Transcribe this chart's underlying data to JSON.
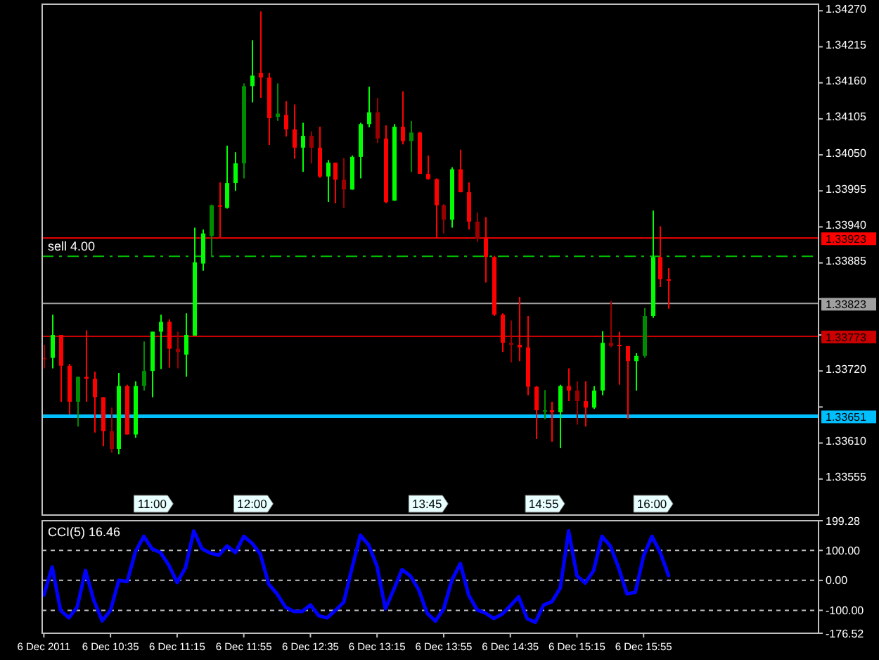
{
  "chart_data": [
    {
      "type": "candlestick",
      "x": [
        "2011-12-06T09:55",
        "2011-12-06T10:00",
        "2011-12-06T10:05",
        "2011-12-06T10:10",
        "2011-12-06T10:15",
        "2011-12-06T10:20",
        "2011-12-06T10:25",
        "2011-12-06T10:30",
        "2011-12-06T10:35",
        "2011-12-06T10:40",
        "2011-12-06T10:45",
        "2011-12-06T10:50",
        "2011-12-06T10:55",
        "2011-12-06T11:00",
        "2011-12-06T11:05",
        "2011-12-06T11:10",
        "2011-12-06T11:15",
        "2011-12-06T11:20",
        "2011-12-06T11:25",
        "2011-12-06T11:30",
        "2011-12-06T11:35",
        "2011-12-06T11:40",
        "2011-12-06T11:45",
        "2011-12-06T11:50",
        "2011-12-06T11:55",
        "2011-12-06T12:00",
        "2011-12-06T12:05",
        "2011-12-06T12:10",
        "2011-12-06T12:15",
        "2011-12-06T12:20",
        "2011-12-06T12:25",
        "2011-12-06T12:30",
        "2011-12-06T12:35",
        "2011-12-06T12:40",
        "2011-12-06T12:45",
        "2011-12-06T12:50",
        "2011-12-06T12:55",
        "2011-12-06T13:00",
        "2011-12-06T13:05",
        "2011-12-06T13:10",
        "2011-12-06T13:15",
        "2011-12-06T13:20",
        "2011-12-06T13:25",
        "2011-12-06T13:30",
        "2011-12-06T13:35",
        "2011-12-06T13:40",
        "2011-12-06T13:45",
        "2011-12-06T13:50",
        "2011-12-06T13:55",
        "2011-12-06T14:00",
        "2011-12-06T14:05",
        "2011-12-06T14:10",
        "2011-12-06T14:15",
        "2011-12-06T14:20",
        "2011-12-06T14:25",
        "2011-12-06T14:30",
        "2011-12-06T14:35",
        "2011-12-06T14:40",
        "2011-12-06T14:45",
        "2011-12-06T14:50",
        "2011-12-06T14:55",
        "2011-12-06T15:00",
        "2011-12-06T15:05",
        "2011-12-06T15:10",
        "2011-12-06T15:15",
        "2011-12-06T15:20",
        "2011-12-06T15:25",
        "2011-12-06T15:30",
        "2011-12-06T15:35",
        "2011-12-06T15:40",
        "2011-12-06T15:45",
        "2011-12-06T15:50",
        "2011-12-06T15:55",
        "2011-12-06T16:00",
        "2011-12-06T16:05",
        "2011-12-06T16:10"
      ],
      "ohlc": [
        [
          1.3374,
          1.3376,
          1.33724,
          1.3374
        ],
        [
          1.3374,
          1.33806,
          1.33724,
          1.33775
        ],
        [
          1.33775,
          1.33775,
          1.33673,
          1.33728
        ],
        [
          1.33728,
          1.33731,
          1.33654,
          1.33673
        ],
        [
          1.33673,
          1.33711,
          1.33635,
          1.33711
        ],
        [
          1.33711,
          1.33782,
          1.33673,
          1.33708
        ],
        [
          1.33708,
          1.33719,
          1.33626,
          1.3368
        ],
        [
          1.3368,
          1.3368,
          1.33605,
          1.33628
        ],
        [
          1.33628,
          1.33664,
          1.33595,
          1.33601
        ],
        [
          1.33601,
          1.33717,
          1.33593,
          1.33697
        ],
        [
          1.33697,
          1.33699,
          1.33623,
          1.33623
        ],
        [
          1.33623,
          1.33704,
          1.33618,
          1.33697
        ],
        [
          1.33697,
          1.33765,
          1.3369,
          1.3372
        ],
        [
          1.3372,
          1.3378,
          1.3368,
          1.3378
        ],
        [
          1.3378,
          1.33806,
          1.33723,
          1.33795
        ],
        [
          1.33795,
          1.33799,
          1.33725,
          1.33754
        ],
        [
          1.33754,
          1.3378,
          1.33724,
          1.33749
        ],
        [
          1.33745,
          1.33808,
          1.33711,
          1.33775
        ],
        [
          1.33774,
          1.33939,
          1.33774,
          1.33886
        ],
        [
          1.33884,
          1.33936,
          1.33873,
          1.3393
        ],
        [
          1.33926,
          1.33974,
          1.33894,
          1.33973
        ],
        [
          1.33973,
          1.34008,
          1.33924,
          1.33971
        ],
        [
          1.33969,
          1.34064,
          1.33968,
          1.34007
        ],
        [
          1.34007,
          1.34054,
          1.33995,
          1.34037
        ],
        [
          1.34037,
          1.34159,
          1.34014,
          1.34155
        ],
        [
          1.34155,
          1.34225,
          1.3413,
          1.34171
        ],
        [
          1.34175,
          1.34269,
          1.34137,
          1.34168
        ],
        [
          1.34168,
          1.34175,
          1.34065,
          1.34106
        ],
        [
          1.34108,
          1.34159,
          1.34102,
          1.34113
        ],
        [
          1.34111,
          1.34132,
          1.34078,
          1.34089
        ],
        [
          1.34089,
          1.34127,
          1.34044,
          1.34061
        ],
        [
          1.34061,
          1.34099,
          1.34024,
          1.34079
        ],
        [
          1.34079,
          1.34086,
          1.34037,
          1.34061
        ],
        [
          1.34061,
          1.34093,
          1.34015,
          1.34017
        ],
        [
          1.34017,
          1.34042,
          1.33978,
          1.34038
        ],
        [
          1.34038,
          1.34038,
          1.33976,
          1.34012
        ],
        [
          1.34012,
          1.34045,
          1.33969,
          1.33997
        ],
        [
          1.33997,
          1.34049,
          1.33997,
          1.34047
        ],
        [
          1.34047,
          1.34099,
          1.34014,
          1.34097
        ],
        [
          1.34097,
          1.34154,
          1.34092,
          1.34115
        ],
        [
          1.34115,
          1.34137,
          1.34068,
          1.34075
        ],
        [
          1.34075,
          1.34095,
          1.33976,
          1.33978
        ],
        [
          1.3398,
          1.34097,
          1.3398,
          1.34093
        ],
        [
          1.34093,
          1.34147,
          1.34066,
          1.34071
        ],
        [
          1.34071,
          1.34102,
          1.34024,
          1.34084
        ],
        [
          1.34084,
          1.34085,
          1.34021,
          1.34021
        ],
        [
          1.34021,
          1.34049,
          1.34012,
          1.34013
        ],
        [
          1.34013,
          1.34014,
          1.33923,
          1.33973
        ],
        [
          1.33973,
          1.33975,
          1.3393,
          1.33951
        ],
        [
          1.33951,
          1.34031,
          1.33939,
          1.34028
        ],
        [
          1.34028,
          1.34058,
          1.33993,
          1.33993
        ],
        [
          1.33993,
          1.34008,
          1.33936,
          1.33948
        ],
        [
          1.33948,
          1.33962,
          1.33917,
          1.33922
        ],
        [
          1.33922,
          1.33955,
          1.33855,
          1.33894
        ],
        [
          1.33894,
          1.33896,
          1.33804,
          1.33806
        ],
        [
          1.33806,
          1.33808,
          1.33749,
          1.33763
        ],
        [
          1.33763,
          1.33797,
          1.33733,
          1.3376
        ],
        [
          1.3376,
          1.33833,
          1.33735,
          1.33756
        ],
        [
          1.33756,
          1.33804,
          1.33683,
          1.33696
        ],
        [
          1.33696,
          1.33697,
          1.33616,
          1.3366
        ],
        [
          1.3366,
          1.33691,
          1.33646,
          1.3366
        ],
        [
          1.3366,
          1.33673,
          1.33612,
          1.33657
        ],
        [
          1.33657,
          1.33699,
          1.33602,
          1.33697
        ],
        [
          1.33697,
          1.33724,
          1.33674,
          1.3369
        ],
        [
          1.3369,
          1.33704,
          1.33638,
          1.33674
        ],
        [
          1.33674,
          1.33704,
          1.33635,
          1.33664
        ],
        [
          1.33664,
          1.33697,
          1.33662,
          1.3369
        ],
        [
          1.3369,
          1.33781,
          1.33683,
          1.33763
        ],
        [
          1.33763,
          1.33827,
          1.33756,
          1.33758
        ],
        [
          1.3376,
          1.3378,
          1.33699,
          1.33758
        ],
        [
          1.33758,
          1.33758,
          1.33647,
          1.33735
        ],
        [
          1.33735,
          1.33747,
          1.3369,
          1.33743
        ],
        [
          1.33743,
          1.33816,
          1.3374,
          1.33804
        ],
        [
          1.33804,
          1.33965,
          1.33801,
          1.33894
        ],
        [
          1.33894,
          1.33941,
          1.33848,
          1.3386
        ],
        [
          1.3386,
          1.33877,
          1.33815,
          1.33859
        ]
      ],
      "colors": [
        "#990000",
        "#00ff00",
        "#ff0000",
        "#ff0000",
        "#008c00",
        "#ff0000",
        "#ff0000",
        "#ff0000",
        "#990000",
        "#00ff00",
        "#ff0000",
        "#00ff00",
        "#008c00",
        "#00ff00",
        "#00ff00",
        "#ff0000",
        "#990000",
        "#00ff00",
        "#00ff00",
        "#00ff00",
        "#008c00",
        "#ff0000",
        "#00ff00",
        "#00ff00",
        "#008c00",
        "#00ff00",
        "#ff0000",
        "#ff0000",
        "#008c00",
        "#ff0000",
        "#ff0000",
        "#00ff00",
        "#990000",
        "#ff0000",
        "#00ff00",
        "#ff0000",
        "#990000",
        "#00ff00",
        "#00ff00",
        "#00ff00",
        "#990000",
        "#ff0000",
        "#00ff00",
        "#ff0000",
        "#008c00",
        "#ff0000",
        "#ff0000",
        "#ff0000",
        "#990000",
        "#00ff00",
        "#ff0000",
        "#ff0000",
        "#990000",
        "#ff0000",
        "#ff0000",
        "#ff0000",
        "#990000",
        "#ff0000",
        "#ff0000",
        "#ff0000",
        "#008c00",
        "#ff0000",
        "#00ff00",
        "#ff0000",
        "#990000",
        "#ff0000",
        "#00ff00",
        "#00ff00",
        "#990000",
        "#ff0000",
        "#ff0000",
        "#00ff00",
        "#008c00",
        "#00ff00",
        "#ff0000",
        "#ff0000"
      ],
      "xlim": [
        "2011-12-06T09:54",
        "2011-12-06T17:40"
      ],
      "ylim": [
        1.335,
        1.3428
      ],
      "yticks": [
        {
          "value": 1.3427,
          "label": "1.34270"
        },
        1.34215,
        {
          "value": 1.3416,
          "label": "1.34160"
        },
        1.34105,
        {
          "value": 1.3405,
          "label": "1.34050"
        },
        1.33995,
        {
          "value": 1.3394,
          "label": "1.33940"
        },
        1.33885,
        {
          "value": 1.3383,
          "label": null
        },
        {
          "value": 1.33775,
          "label": null
        },
        {
          "value": 1.3372,
          "label": "1.33720"
        },
        {
          "value": 1.33665,
          "label": null
        },
        {
          "value": 1.3361,
          "label": "1.33610"
        },
        1.33555
      ],
      "ref_lines": [
        {
          "axis": "y",
          "value": 1.33923,
          "label": "1.33923",
          "color": "#ff0000"
        },
        {
          "axis": "y",
          "value": 1.33895,
          "label": "sell 4.00",
          "color": "#00c000",
          "line_style": "dashed"
        },
        {
          "axis": "y",
          "value": 1.33823,
          "label": "1.33823",
          "color": "#a0a0a0"
        },
        {
          "axis": "y",
          "value": 1.33773,
          "label": "1.33773",
          "color": "#cc0000"
        },
        {
          "axis": "y",
          "value": 1.33651,
          "label": "1.33651",
          "color": "#00bfff"
        }
      ],
      "xticks": [
        {
          "value": "2011-12-06T11:00",
          "label": "11:00"
        },
        {
          "value": "2011-12-06T12:00",
          "label": "12:00"
        },
        {
          "value": "2011-12-06T13:45",
          "label": "13:45"
        },
        {
          "value": "2011-12-06T14:55",
          "label": "14:55"
        },
        {
          "value": "2011-12-06T16:00",
          "label": "16:00"
        }
      ]
    },
    {
      "type": "line",
      "title": "CCI(5) 16.46",
      "x": [
        "2011-12-06T09:55",
        "2011-12-06T10:00",
        "2011-12-06T10:05",
        "2011-12-06T10:10",
        "2011-12-06T10:15",
        "2011-12-06T10:20",
        "2011-12-06T10:25",
        "2011-12-06T10:30",
        "2011-12-06T10:35",
        "2011-12-06T10:40",
        "2011-12-06T10:45",
        "2011-12-06T10:50",
        "2011-12-06T10:55",
        "2011-12-06T11:00",
        "2011-12-06T11:05",
        "2011-12-06T11:10",
        "2011-12-06T11:15",
        "2011-12-06T11:20",
        "2011-12-06T11:25",
        "2011-12-06T11:30",
        "2011-12-06T11:35",
        "2011-12-06T11:40",
        "2011-12-06T11:45",
        "2011-12-06T11:50",
        "2011-12-06T11:55",
        "2011-12-06T12:00",
        "2011-12-06T12:05",
        "2011-12-06T12:10",
        "2011-12-06T12:15",
        "2011-12-06T12:20",
        "2011-12-06T12:25",
        "2011-12-06T12:30",
        "2011-12-06T12:35",
        "2011-12-06T12:40",
        "2011-12-06T12:45",
        "2011-12-06T12:50",
        "2011-12-06T12:55",
        "2011-12-06T13:00",
        "2011-12-06T13:05",
        "2011-12-06T13:10",
        "2011-12-06T13:15",
        "2011-12-06T13:20",
        "2011-12-06T13:25",
        "2011-12-06T13:30",
        "2011-12-06T13:35",
        "2011-12-06T13:40",
        "2011-12-06T13:45",
        "2011-12-06T13:50",
        "2011-12-06T13:55",
        "2011-12-06T14:00",
        "2011-12-06T14:05",
        "2011-12-06T14:10",
        "2011-12-06T14:15",
        "2011-12-06T14:20",
        "2011-12-06T14:25",
        "2011-12-06T14:30",
        "2011-12-06T14:35",
        "2011-12-06T14:40",
        "2011-12-06T14:45",
        "2011-12-06T14:50",
        "2011-12-06T14:55",
        "2011-12-06T15:00",
        "2011-12-06T15:05",
        "2011-12-06T15:10",
        "2011-12-06T15:15",
        "2011-12-06T15:20",
        "2011-12-06T15:25",
        "2011-12-06T15:30",
        "2011-12-06T15:35",
        "2011-12-06T15:40",
        "2011-12-06T15:45",
        "2011-12-06T15:50",
        "2011-12-06T15:55",
        "2011-12-06T16:00",
        "2011-12-06T16:05",
        "2011-12-06T16:10"
      ],
      "series": [
        {
          "color": "#0000ff",
          "values": [
            -49,
            45,
            -100,
            -125,
            -89,
            33,
            -67,
            -135,
            -100,
            0,
            -4,
            96,
            147,
            105,
            93,
            51,
            -7,
            42,
            165,
            105,
            91,
            84,
            115,
            93,
            147,
            124,
            87,
            -13,
            -45,
            -89,
            -104,
            -104,
            -82,
            -118,
            -125,
            -100,
            -73,
            42,
            151,
            118,
            47,
            -95,
            -31,
            36,
            15,
            -31,
            -109,
            -136,
            -95,
            2,
            56,
            -49,
            -98,
            -109,
            -127,
            -113,
            -85,
            -55,
            -127,
            -140,
            -82,
            -71,
            -25,
            165,
            15,
            -9,
            33,
            147,
            115,
            42,
            -45,
            -40,
            82,
            147,
            93,
            16
          ]
        }
      ],
      "xlim": [
        "2011-12-06T09:54",
        "2011-12-06T17:40"
      ],
      "xticks": [
        {
          "value": "2011-12-06T09:55",
          "label": "6 Dec 2011"
        },
        {
          "value": "2011-12-06T10:35",
          "label": "6 Dec 10:35"
        },
        {
          "value": "2011-12-06T11:15",
          "label": "6 Dec 11:15"
        },
        {
          "value": "2011-12-06T11:55",
          "label": "6 Dec 11:55"
        },
        {
          "value": "2011-12-06T12:35",
          "label": "6 Dec 12:35"
        },
        {
          "value": "2011-12-06T13:15",
          "label": "6 Dec 13:15"
        },
        {
          "value": "2011-12-06T13:55",
          "label": "6 Dec 13:55"
        },
        {
          "value": "2011-12-06T14:35",
          "label": "6 Dec 14:35"
        },
        {
          "value": "2011-12-06T15:15",
          "label": "6 Dec 15:15"
        },
        {
          "value": "2011-12-06T15:55",
          "label": "6 Dec 15:55"
        }
      ],
      "ylim": [
        -176.52,
        199.28
      ],
      "yticks": [
        199.28,
        {
          "value": 100,
          "label": "100.00"
        },
        {
          "value": 0,
          "label": "0.00"
        },
        {
          "value": -100,
          "label": "-100.00"
        },
        -176.52
      ],
      "grid": "y"
    }
  ]
}
